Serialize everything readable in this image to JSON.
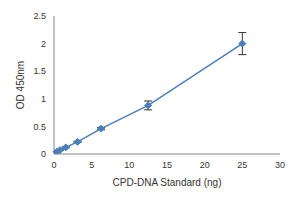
{
  "chart_data": {
    "type": "line",
    "x_label": "CPD-DNA Standard (ng)",
    "y_label": "OD 450nm",
    "x": [
      0,
      0.39,
      0.78,
      1.56,
      3.125,
      6.25,
      12.5,
      25
    ],
    "values": [
      0.02,
      0.04,
      0.07,
      0.12,
      0.22,
      0.46,
      0.88,
      2.0
    ],
    "errors": [
      0,
      0.005,
      0.005,
      0.01,
      0.01,
      0.02,
      0.08,
      0.2
    ],
    "color": "#4a7ebb",
    "marker": "diamond",
    "xlim": [
      0,
      30
    ],
    "xticks": [
      0,
      5,
      10,
      15,
      20,
      25,
      30
    ],
    "ylim": [
      0,
      2.5
    ],
    "yticks": [
      0,
      0.5,
      1,
      1.5,
      2,
      2.5
    ],
    "grid": false
  }
}
